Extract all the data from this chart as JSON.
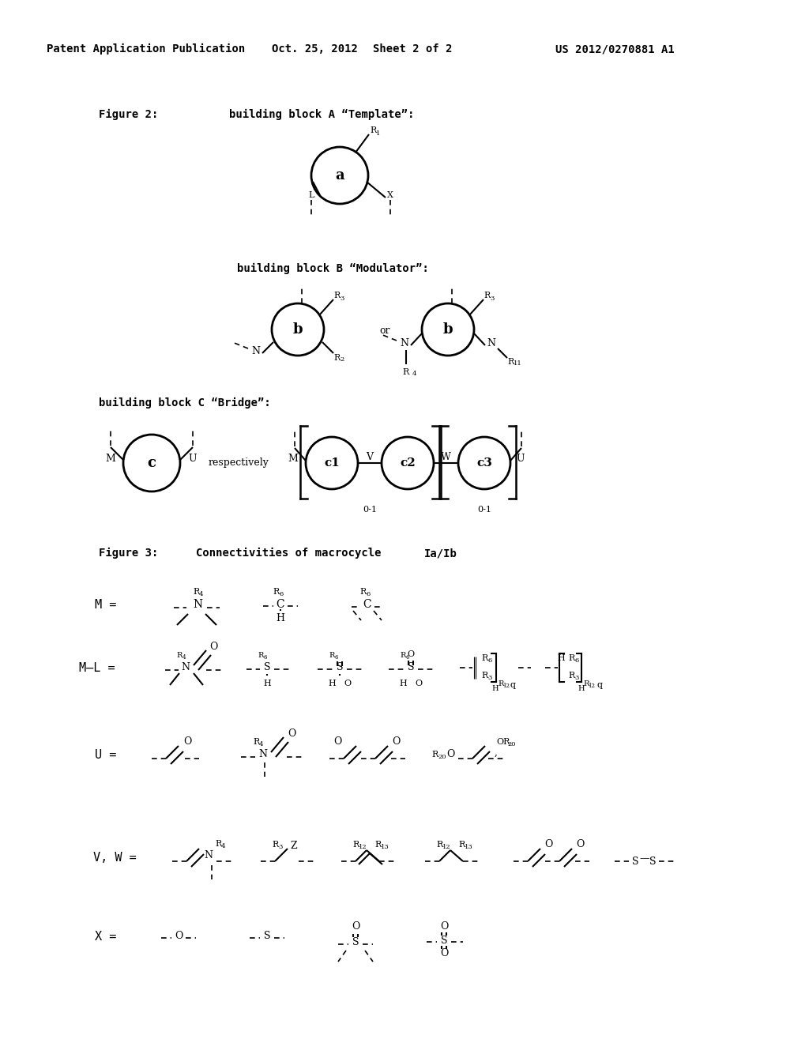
{
  "bg_color": "#ffffff",
  "header_left": "Patent Application Publication",
  "header_mid1": "Oct. 25, 2012",
  "header_mid2": "Sheet 2 of 2",
  "header_right": "US 2012/0270881 A1"
}
